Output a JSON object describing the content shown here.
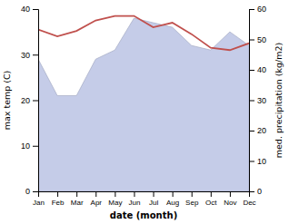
{
  "chart_data": {
    "type": "line",
    "categories": [
      "Jan",
      "Feb",
      "Mar",
      "Apr",
      "May",
      "Jun",
      "Jul",
      "Aug",
      "Sep",
      "Oct",
      "Nov",
      "Dec"
    ],
    "series": [
      {
        "type": "area",
        "color": "#c5cce8",
        "values": [
          29.0,
          21.0,
          21.0,
          29.0,
          31.0,
          38.0,
          37.0,
          36.0,
          32.0,
          31.0,
          35.0,
          32.0
        ]
      },
      {
        "type": "line",
        "color": "#c0504d",
        "values": [
          35.5,
          34.0,
          35.2,
          37.5,
          38.5,
          38.5,
          36.0,
          37.0,
          34.5,
          31.5,
          31.0,
          32.5
        ]
      }
    ],
    "xlabel": "date (month)",
    "ylabel": "max temp (C)",
    "y2label": "med. precipitation (kg/m2)",
    "ylim": [
      0,
      40
    ],
    "yticks": [
      0,
      10,
      20,
      30,
      40
    ],
    "y2lim": [
      0,
      60
    ],
    "y2ticks": [
      0,
      10,
      20,
      30,
      40,
      50,
      60
    ],
    "grid": false
  }
}
